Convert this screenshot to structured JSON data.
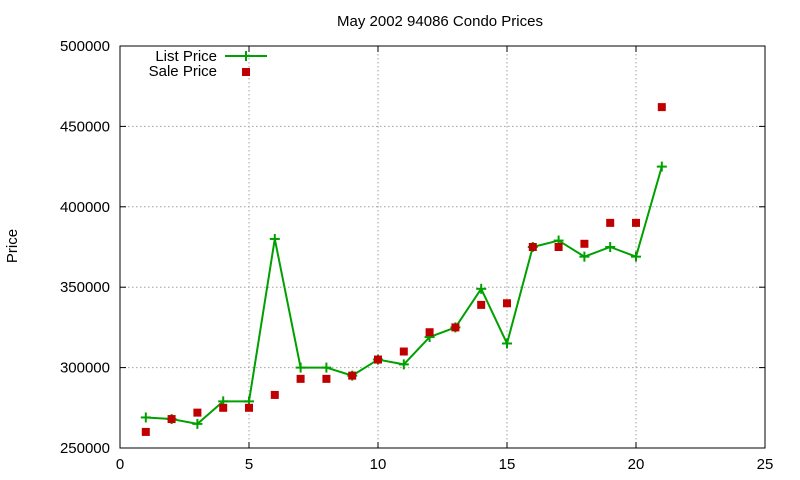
{
  "chart_data": {
    "type": "line",
    "title": "May 2002 94086 Condo Prices",
    "xlabel": "",
    "ylabel": "Price",
    "xlim": [
      0,
      25
    ],
    "ylim": [
      250000,
      500000
    ],
    "x_ticks": [
      0,
      5,
      10,
      15,
      20,
      25
    ],
    "y_ticks": [
      250000,
      300000,
      350000,
      400000,
      450000,
      500000
    ],
    "grid": true,
    "legend_position": "top-left",
    "series": [
      {
        "name": "List Price",
        "style": "line-with-plus-markers",
        "color": "#00a000",
        "x": [
          1,
          2,
          3,
          4,
          5,
          6,
          7,
          8,
          9,
          10,
          11,
          12,
          13,
          14,
          15,
          16,
          17,
          18,
          19,
          20,
          21
        ],
        "values": [
          269000,
          268000,
          265000,
          279000,
          279000,
          380000,
          300000,
          300000,
          295000,
          305000,
          302000,
          319000,
          325000,
          349000,
          315000,
          375000,
          379000,
          369000,
          375000,
          369000,
          425000
        ]
      },
      {
        "name": "Sale Price",
        "style": "square-markers",
        "color": "#c00000",
        "x": [
          1,
          2,
          3,
          4,
          5,
          6,
          7,
          8,
          9,
          10,
          11,
          12,
          13,
          14,
          15,
          16,
          17,
          18,
          19,
          20,
          21
        ],
        "values": [
          260000,
          268000,
          272000,
          275000,
          275000,
          283000,
          293000,
          293000,
          295000,
          305000,
          310000,
          322000,
          325000,
          339000,
          340000,
          375000,
          375000,
          377000,
          390000,
          390000,
          462000
        ]
      }
    ]
  }
}
